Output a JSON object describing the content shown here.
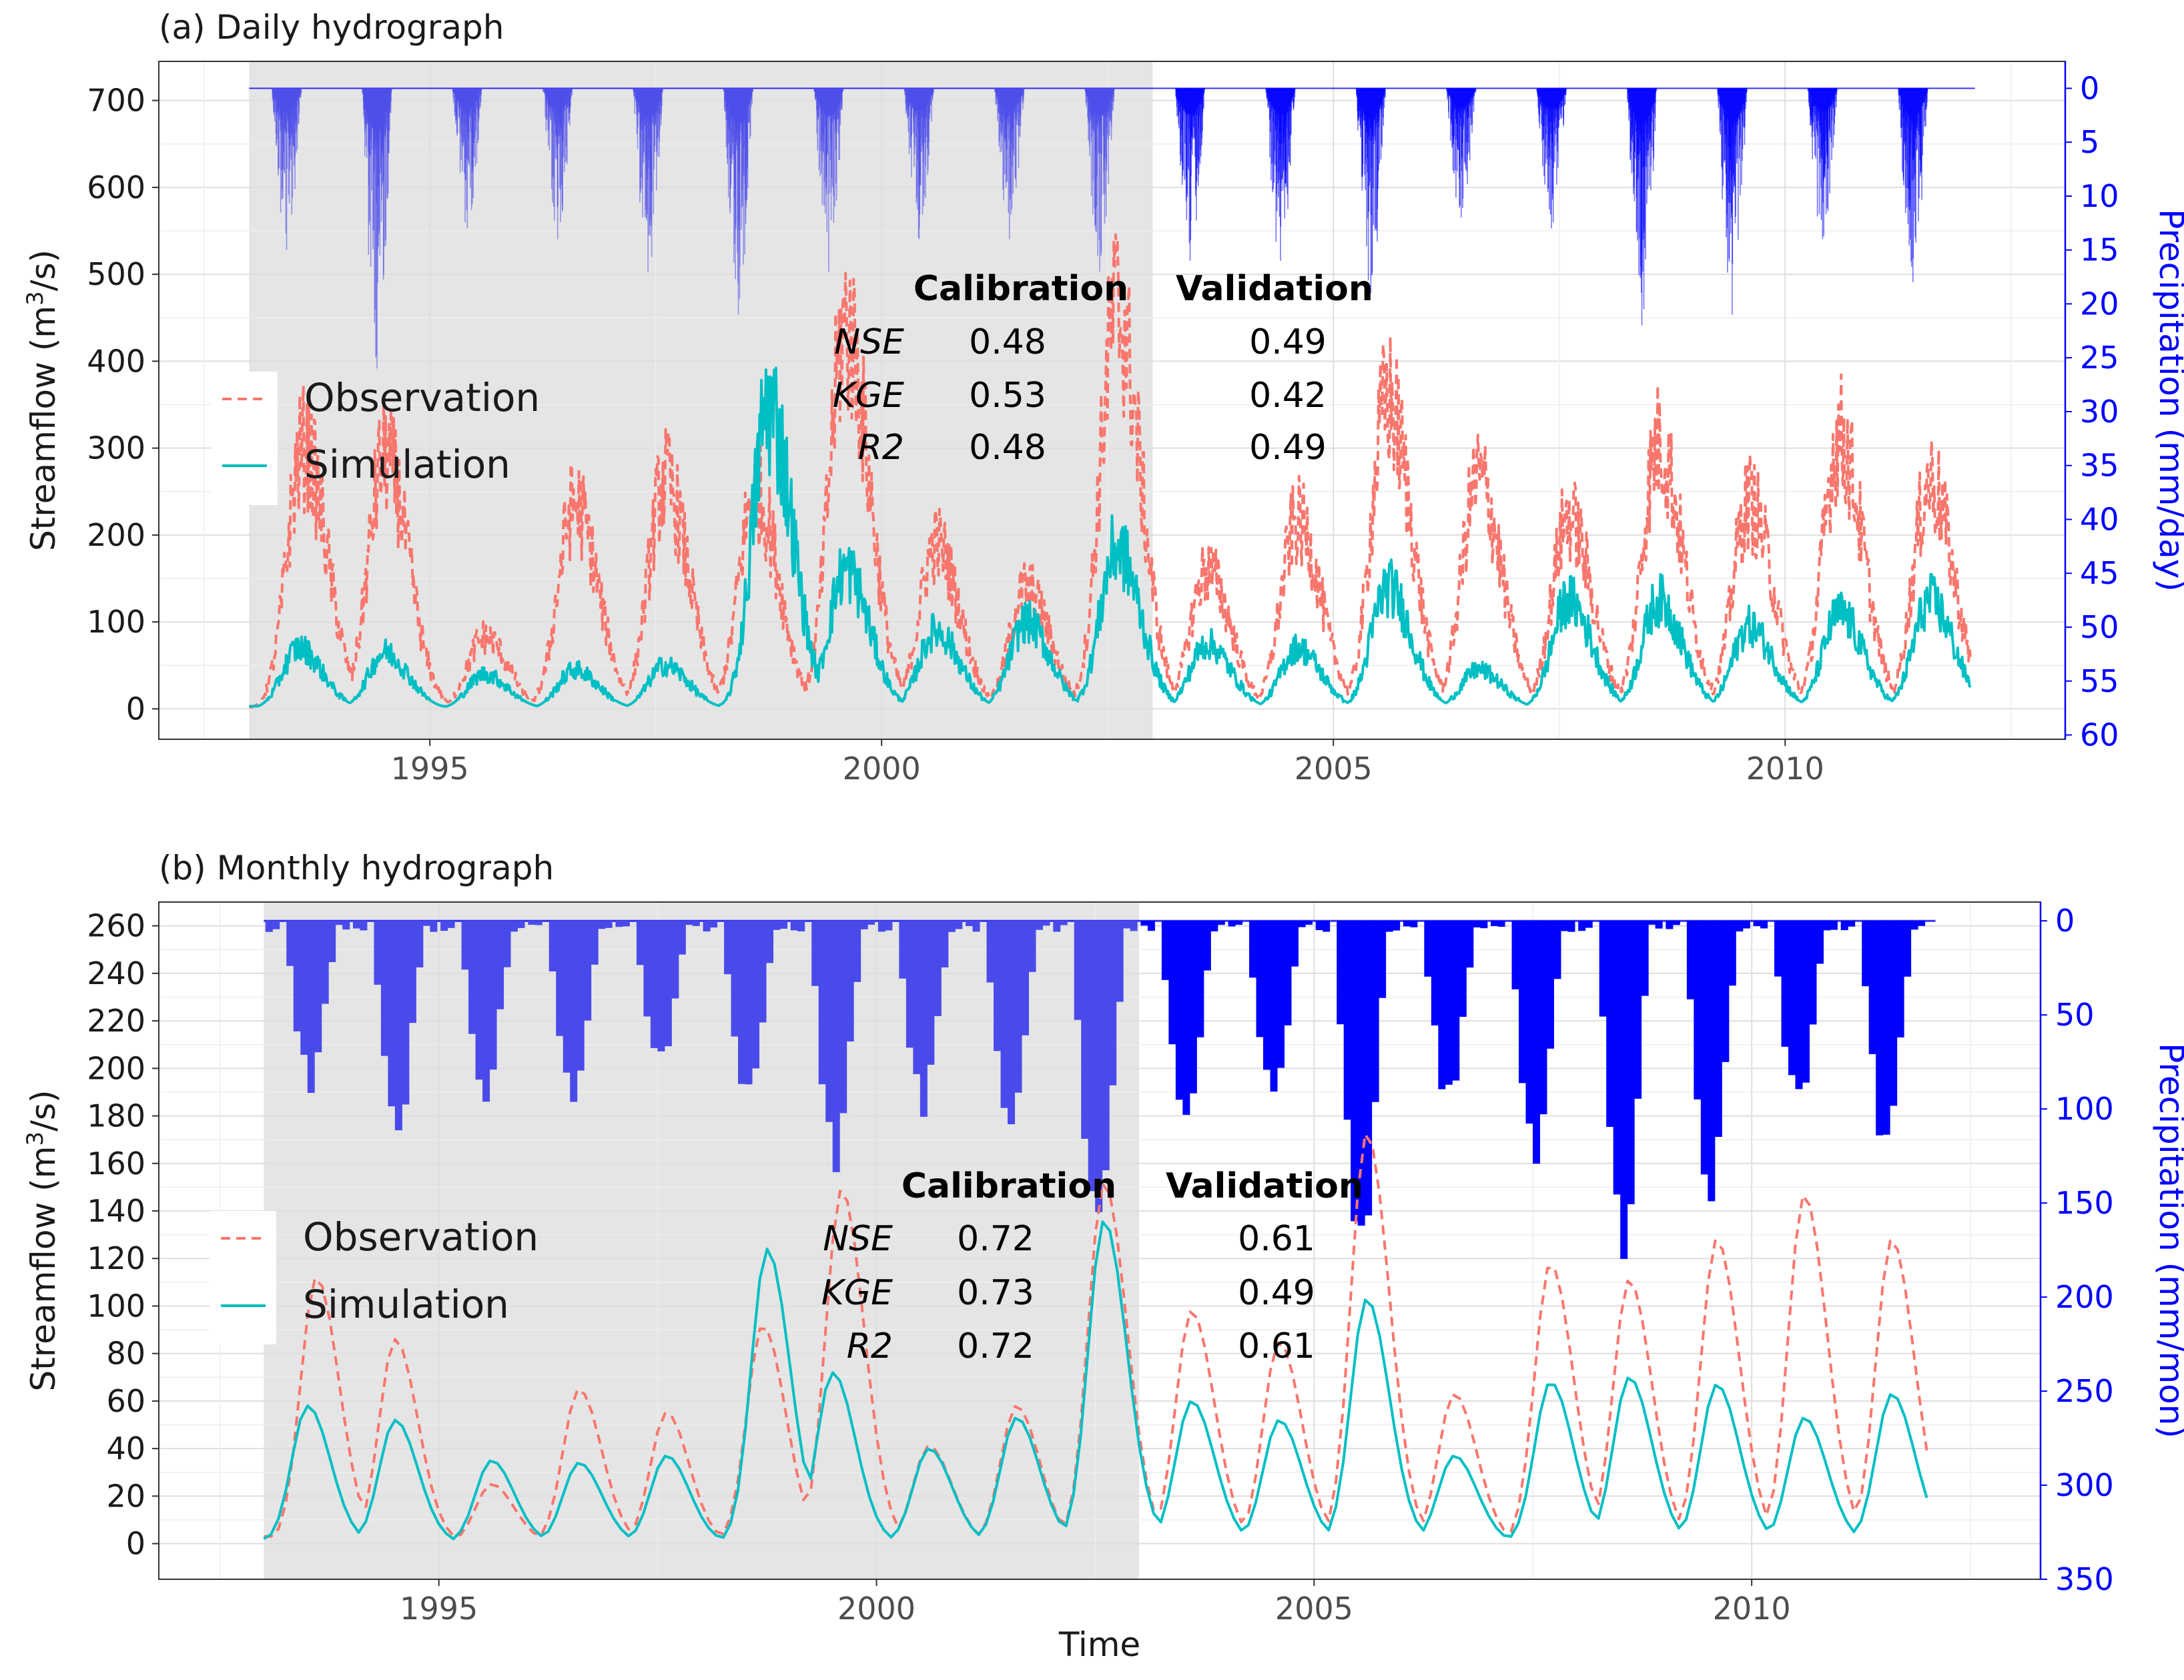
{
  "chart_data": [
    {
      "panel_title": "(a) Daily hydrograph",
      "type": "line",
      "ylabel": "Streamflow (m³/s)",
      "ylabel_parts": [
        "Streamflow (m",
        "3",
        "/s)"
      ],
      "y2label": "Precipitation (mm/day)",
      "x_ticks": [
        1995,
        2000,
        2005,
        2010
      ],
      "y_ticks": [
        0,
        100,
        200,
        300,
        400,
        500,
        600,
        700
      ],
      "y2_ticks": [
        0,
        5,
        10,
        15,
        20,
        25,
        30,
        35,
        40,
        45,
        50,
        55,
        60
      ],
      "xlim": [
        1992.0,
        2013.1
      ],
      "ylim": [
        -35,
        745
      ],
      "y2lim": [
        60.4,
        -2.5
      ],
      "calibration_period": [
        1993.0,
        2003.0
      ],
      "legend": [
        "Observation",
        "Simulation"
      ],
      "series": [
        {
          "name": "Observation",
          "color": "#F8766D",
          "dash": true,
          "peaks": [
            {
              "x": 1993.6,
              "peak": 300,
              "base": 2
            },
            {
              "x": 1994.5,
              "peak": 290,
              "base": 2
            },
            {
              "x": 1995.6,
              "peak": 83,
              "base": 1
            },
            {
              "x": 1996.6,
              "peak": 235,
              "base": 2
            },
            {
              "x": 1997.6,
              "peak": 262,
              "base": 2
            },
            {
              "x": 1998.6,
              "peak": 250,
              "base": 3
            },
            {
              "x": 1999.6,
              "peak": 440,
              "base": 3
            },
            {
              "x": 2000.6,
              "peak": 190,
              "base": 2
            },
            {
              "x": 2001.6,
              "peak": 140,
              "base": 1
            },
            {
              "x": 2002.6,
              "peak": 460,
              "base": 3
            },
            {
              "x": 2003.6,
              "peak": 160,
              "base": 2
            },
            {
              "x": 2004.6,
              "peak": 215,
              "base": 2
            },
            {
              "x": 2005.6,
              "peak": 355,
              "base": 2
            },
            {
              "x": 2006.6,
              "peak": 265,
              "base": 2
            },
            {
              "x": 2007.6,
              "peak": 220,
              "base": 2
            },
            {
              "x": 2008.6,
              "peak": 305,
              "base": 2
            },
            {
              "x": 2009.6,
              "peak": 238,
              "base": 2
            },
            {
              "x": 2010.6,
              "peak": 312,
              "base": 2
            },
            {
              "x": 2011.6,
              "peak": 262,
              "base": 2
            }
          ]
        },
        {
          "name": "Simulation",
          "color": "#00BFC4",
          "dash": false,
          "peaks": [
            {
              "x": 1993.55,
              "peak": 70,
              "base": 3
            },
            {
              "x": 1994.5,
              "peak": 65,
              "base": 3
            },
            {
              "x": 1995.6,
              "peak": 40,
              "base": 2
            },
            {
              "x": 1996.6,
              "peak": 45,
              "base": 3
            },
            {
              "x": 1997.6,
              "peak": 50,
              "base": 3
            },
            {
              "x": 1998.75,
              "peak": 348,
              "base": 5
            },
            {
              "x": 1999.6,
              "peak": 160,
              "base": 5
            },
            {
              "x": 2000.6,
              "peak": 90,
              "base": 4
            },
            {
              "x": 2001.6,
              "peak": 100,
              "base": 3
            },
            {
              "x": 2002.6,
              "peak": 185,
              "base": 4
            },
            {
              "x": 2003.6,
              "peak": 75,
              "base": 5
            },
            {
              "x": 2004.6,
              "peak": 70,
              "base": 4
            },
            {
              "x": 2005.6,
              "peak": 140,
              "base": 4
            },
            {
              "x": 2006.6,
              "peak": 45,
              "base": 3
            },
            {
              "x": 2007.6,
              "peak": 125,
              "base": 4
            },
            {
              "x": 2008.6,
              "peak": 125,
              "base": 4
            },
            {
              "x": 2009.6,
              "peak": 95,
              "base": 4
            },
            {
              "x": 2010.6,
              "peak": 110,
              "base": 4
            },
            {
              "x": 2011.6,
              "peak": 125,
              "base": 4
            }
          ]
        }
      ],
      "precipitation": {
        "name": "Precipitation",
        "unit": "mm/day",
        "seasonal_max": [
          {
            "year": 1993,
            "max": 15
          },
          {
            "year": 1994,
            "max": 26
          },
          {
            "year": 1995,
            "max": 13
          },
          {
            "year": 1996,
            "max": 14
          },
          {
            "year": 1997,
            "max": 17
          },
          {
            "year": 1998,
            "max": 21
          },
          {
            "year": 1999,
            "max": 17
          },
          {
            "year": 2000,
            "max": 14
          },
          {
            "year": 2001,
            "max": 14
          },
          {
            "year": 2002,
            "max": 17
          },
          {
            "year": 2003,
            "max": 16
          },
          {
            "year": 2004,
            "max": 16
          },
          {
            "year": 2005,
            "max": 19
          },
          {
            "year": 2006,
            "max": 12
          },
          {
            "year": 2007,
            "max": 13
          },
          {
            "year": 2008,
            "max": 22
          },
          {
            "year": 2009,
            "max": 21
          },
          {
            "year": 2010,
            "max": 14
          },
          {
            "year": 2011,
            "max": 18
          }
        ]
      },
      "stats": {
        "headers": [
          "Calibration",
          "Validation"
        ],
        "rows": [
          {
            "label": "NSE",
            "calibration": "0.48",
            "validation": "0.49"
          },
          {
            "label": "KGE",
            "calibration": "0.53",
            "validation": "0.42"
          },
          {
            "label": "R2",
            "calibration": "0.48",
            "validation": "0.49"
          }
        ]
      }
    },
    {
      "panel_title": "(b) Monthly hydrograph",
      "type": "line",
      "xlabel": "Time",
      "ylabel": "Streamflow (m³/s)",
      "ylabel_parts": [
        "Streamflow (m",
        "3",
        "/s)"
      ],
      "y2label": "Precipitation (mm/mon)",
      "x_ticks": [
        1995,
        2000,
        2005,
        2010
      ],
      "y_ticks": [
        0,
        20,
        40,
        60,
        80,
        100,
        120,
        140,
        160,
        180,
        200,
        220,
        240,
        260
      ],
      "y2_ticks": [
        0,
        50,
        100,
        150,
        200,
        250,
        300,
        350
      ],
      "xlim": [
        1991.8,
        2013.3
      ],
      "ylim": [
        -15,
        270
      ],
      "y2lim": [
        350,
        -10
      ],
      "calibration_period": [
        1993.0,
        2003.0
      ],
      "legend": [
        "Observation",
        "Simulation"
      ],
      "series": [
        {
          "name": "Observation",
          "color": "#F8766D",
          "dash": true,
          "peaks": [
            {
              "x": 1993.6,
              "peak": 112,
              "base": 3
            },
            {
              "x": 1994.5,
              "peak": 86,
              "base": 3
            },
            {
              "x": 1995.6,
              "peak": 25,
              "base": 2
            },
            {
              "x": 1996.6,
              "peak": 65,
              "base": 2
            },
            {
              "x": 1997.6,
              "peak": 55,
              "base": 2
            },
            {
              "x": 1998.7,
              "peak": 92,
              "base": 3
            },
            {
              "x": 1999.6,
              "peak": 149,
              "base": 3
            },
            {
              "x": 2000.6,
              "peak": 41,
              "base": 2
            },
            {
              "x": 2001.6,
              "peak": 58,
              "base": 2
            },
            {
              "x": 2002.6,
              "peak": 152,
              "base": 3
            },
            {
              "x": 2003.6,
              "peak": 98,
              "base": 2
            },
            {
              "x": 2004.6,
              "peak": 85,
              "base": 2
            },
            {
              "x": 2005.6,
              "peak": 173,
              "base": 2
            },
            {
              "x": 2006.6,
              "peak": 63,
              "base": 2
            },
            {
              "x": 2007.7,
              "peak": 118,
              "base": 2
            },
            {
              "x": 2008.6,
              "peak": 111,
              "base": 2
            },
            {
              "x": 2009.6,
              "peak": 128,
              "base": 2
            },
            {
              "x": 2010.6,
              "peak": 147,
              "base": 2
            },
            {
              "x": 2011.6,
              "peak": 128,
              "base": 2
            }
          ]
        },
        {
          "name": "Simulation",
          "color": "#00BFC4",
          "dash": false,
          "peaks": [
            {
              "x": 1993.5,
              "peak": 58,
              "base": 2
            },
            {
              "x": 1994.5,
              "peak": 52,
              "base": 2
            },
            {
              "x": 1995.6,
              "peak": 35,
              "base": 1
            },
            {
              "x": 1996.6,
              "peak": 34,
              "base": 1
            },
            {
              "x": 1997.6,
              "peak": 37,
              "base": 1
            },
            {
              "x": 1998.75,
              "peak": 124,
              "base": 2
            },
            {
              "x": 1999.5,
              "peak": 72,
              "base": 2
            },
            {
              "x": 2000.6,
              "peak": 40,
              "base": 2
            },
            {
              "x": 2001.6,
              "peak": 53,
              "base": 2
            },
            {
              "x": 2002.6,
              "peak": 136,
              "base": 2
            },
            {
              "x": 2003.6,
              "peak": 60,
              "base": 2
            },
            {
              "x": 2004.6,
              "peak": 52,
              "base": 2
            },
            {
              "x": 2005.6,
              "peak": 103,
              "base": 1
            },
            {
              "x": 2006.6,
              "peak": 37,
              "base": 1
            },
            {
              "x": 2007.7,
              "peak": 68,
              "base": 1
            },
            {
              "x": 2008.6,
              "peak": 70,
              "base": 1
            },
            {
              "x": 2009.6,
              "peak": 67,
              "base": 1
            },
            {
              "x": 2010.6,
              "peak": 53,
              "base": 1
            },
            {
              "x": 2011.6,
              "peak": 63,
              "base": 1
            }
          ]
        }
      ],
      "precipitation": {
        "name": "Precipitation",
        "unit": "mm/mon",
        "seasonal_max": [
          {
            "year": 1993,
            "max": 92
          },
          {
            "year": 1994,
            "max": 115
          },
          {
            "year": 1995,
            "max": 100
          },
          {
            "year": 1996,
            "max": 105
          },
          {
            "year": 1997,
            "max": 80
          },
          {
            "year": 1998,
            "max": 100
          },
          {
            "year": 1999,
            "max": 135
          },
          {
            "year": 2000,
            "max": 105
          },
          {
            "year": 2001,
            "max": 125
          },
          {
            "year": 2002,
            "max": 180
          },
          {
            "year": 2003,
            "max": 118
          },
          {
            "year": 2004,
            "max": 103
          },
          {
            "year": 2005,
            "max": 185
          },
          {
            "year": 2006,
            "max": 100
          },
          {
            "year": 2007,
            "max": 137
          },
          {
            "year": 2008,
            "max": 185
          },
          {
            "year": 2009,
            "max": 155
          },
          {
            "year": 2010,
            "max": 105
          },
          {
            "year": 2011,
            "max": 128
          }
        ]
      },
      "stats": {
        "headers": [
          "Calibration",
          "Validation"
        ],
        "rows": [
          {
            "label": "NSE",
            "calibration": "0.72",
            "validation": "0.61"
          },
          {
            "label": "KGE",
            "calibration": "0.73",
            "validation": "0.49"
          },
          {
            "label": "R2",
            "calibration": "0.72",
            "validation": "0.61"
          }
        ]
      }
    }
  ],
  "colors": {
    "observation": "#F8766D",
    "simulation": "#00BFC4",
    "precip_calibration": "#4A4AEA",
    "precip_validation": "#0000FF",
    "axis_secondary": "#0000FF",
    "calibration_shade": "#E5E5E5"
  }
}
